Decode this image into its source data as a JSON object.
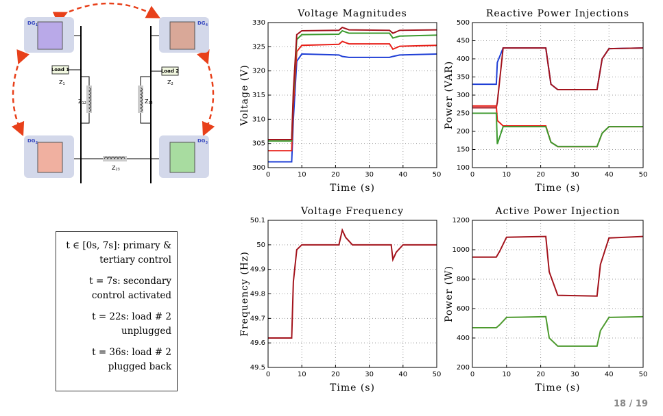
{
  "diagram": {
    "dg": [
      {
        "text": "DG",
        "sub": "1"
      },
      {
        "text": "DG",
        "sub": "4"
      },
      {
        "text": "DG",
        "sub": "2"
      },
      {
        "text": "DG",
        "sub": "3"
      }
    ],
    "loads": [
      "Load 1",
      "Load 2"
    ],
    "impedances": [
      {
        "text": "Z",
        "sub": "1"
      },
      {
        "text": "Z",
        "sub": "2"
      },
      {
        "text": "Z",
        "sub": "12"
      },
      {
        "text": "Z",
        "sub": "34"
      },
      {
        "text": "Z",
        "sub": "23"
      }
    ]
  },
  "notes": [
    "t ∈ [0s, 7s]: primary & tertiary control",
    "t = 7s: secondary control activated",
    "t = 22s: load # 2 unplugged",
    "t = 36s: load # 2 plugged back"
  ],
  "page_number": "18 / 19",
  "chart_data": [
    {
      "type": "line",
      "title": "Voltage Magnitudes",
      "xlabel": "Time (s)",
      "ylabel": "Voltage (V)",
      "x": [
        0,
        7,
        7.5,
        8.5,
        10,
        21,
        22,
        24,
        36,
        37,
        39,
        50
      ],
      "series": [
        {
          "color": "#1f3fd6",
          "values": [
            301.2,
            301.2,
            310,
            322,
            323.5,
            323.3,
            323,
            322.8,
            322.8,
            323,
            323.3,
            323.5
          ]
        },
        {
          "color": "#e8211a",
          "values": [
            303.5,
            303.5,
            313,
            324,
            325.3,
            325.5,
            326.1,
            325.6,
            325.6,
            324.5,
            325.1,
            325.3
          ]
        },
        {
          "color": "#3c9a2e",
          "values": [
            305.5,
            305.5,
            315,
            326.5,
            327.5,
            327.6,
            328.3,
            327.8,
            327.8,
            326.8,
            327.2,
            327.4
          ]
        },
        {
          "color": "#a3131c",
          "values": [
            305.8,
            305.8,
            316,
            327.5,
            328.3,
            328.4,
            329,
            328.5,
            328.4,
            327.8,
            328.4,
            328.5
          ]
        }
      ],
      "xlim": [
        0,
        50
      ],
      "xticks": [
        0,
        10,
        20,
        30,
        40,
        50
      ],
      "ylim": [
        300,
        330
      ],
      "yticks": [
        300,
        305,
        310,
        315,
        320,
        325,
        330
      ],
      "grid": true
    },
    {
      "type": "line",
      "title": "Reactive Power Injections",
      "xlabel": "Time (s)",
      "ylabel": "Power (VAR)",
      "x": [
        0,
        7,
        7.3,
        9,
        21.5,
        23,
        25,
        36.5,
        38,
        40,
        50
      ],
      "series": [
        {
          "color": "#1f3fd6",
          "values": [
            330,
            330,
            390,
            430,
            430,
            330,
            315,
            315,
            400,
            428,
            430
          ]
        },
        {
          "color": "#a3131c",
          "values": [
            265,
            265,
            280,
            430,
            430,
            330,
            315,
            315,
            400,
            428,
            430
          ]
        },
        {
          "color": "#e8211a",
          "values": [
            270,
            270,
            230,
            215,
            215,
            170,
            158,
            158,
            195,
            213,
            213
          ]
        },
        {
          "color": "#3c9a2e",
          "values": [
            250,
            250,
            165,
            213,
            213,
            170,
            158,
            158,
            195,
            213,
            213
          ]
        }
      ],
      "xlim": [
        0,
        50
      ],
      "xticks": [
        0,
        10,
        20,
        30,
        40,
        50
      ],
      "ylim": [
        100,
        500
      ],
      "yticks": [
        100,
        150,
        200,
        250,
        300,
        350,
        400,
        450,
        500
      ],
      "grid": true
    },
    {
      "type": "line",
      "title": "Voltage Frequency",
      "xlabel": "Time (s)",
      "ylabel": "Frequency (Hz)",
      "x": [
        0,
        7,
        7.5,
        8.5,
        10,
        21,
        22,
        23,
        25,
        36.5,
        37,
        38,
        40,
        50
      ],
      "series": [
        {
          "color": "#a3131c",
          "values": [
            49.62,
            49.62,
            49.85,
            49.98,
            50,
            50,
            50.06,
            50.03,
            50,
            50,
            49.94,
            49.97,
            50,
            50
          ]
        }
      ],
      "xlim": [
        0,
        50
      ],
      "xticks": [
        0,
        10,
        20,
        30,
        40,
        50
      ],
      "ylim": [
        49.5,
        50.1
      ],
      "yticks": [
        49.5,
        49.6,
        49.7,
        49.8,
        49.9,
        50,
        50.1
      ],
      "grid": true
    },
    {
      "type": "line",
      "title": "Active Power Injection",
      "xlabel": "Time (s)",
      "ylabel": "Power (W)",
      "x": [
        0,
        7,
        8,
        10,
        21.5,
        22.5,
        25,
        36.5,
        37.5,
        40,
        50
      ],
      "series": [
        {
          "color": "#a3131c",
          "values": [
            950,
            950,
            990,
            1085,
            1090,
            850,
            690,
            685,
            900,
            1080,
            1090
          ]
        },
        {
          "color": "#4d9a2e",
          "values": [
            470,
            470,
            490,
            540,
            545,
            400,
            345,
            345,
            450,
            540,
            545
          ]
        }
      ],
      "xlim": [
        0,
        50
      ],
      "xticks": [
        0,
        10,
        20,
        30,
        40,
        50
      ],
      "ylim": [
        200,
        1200
      ],
      "yticks": [
        200,
        400,
        600,
        800,
        1000,
        1200
      ],
      "grid": true
    }
  ]
}
